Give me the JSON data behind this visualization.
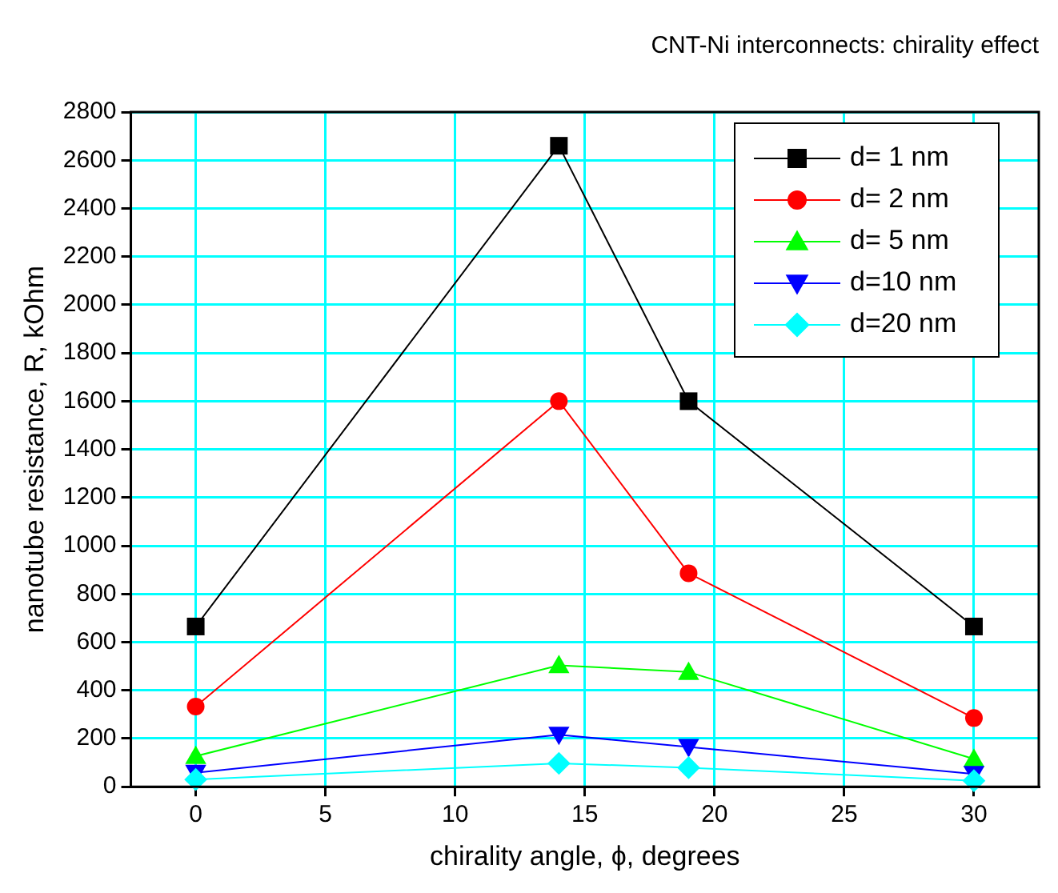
{
  "chart_data": {
    "type": "line",
    "title": "CNT-Ni interconnects: chirality effect",
    "xlabel": "chirality angle, ϕ, degrees",
    "ylabel": "nanotube resistance, R, kOhm",
    "x": [
      0,
      14,
      19,
      30
    ],
    "series": [
      {
        "name": "d= 1 nm",
        "color": "#000000",
        "marker": "square",
        "values": [
          665,
          2660,
          1600,
          665
        ]
      },
      {
        "name": "d= 2 nm",
        "color": "#ff0000",
        "marker": "circle",
        "values": [
          333,
          1600,
          886,
          285
        ]
      },
      {
        "name": "d= 5 nm",
        "color": "#00ff00",
        "marker": "triangle",
        "values": [
          127,
          504,
          476,
          115
        ]
      },
      {
        "name": "d=10 nm",
        "color": "#0000ff",
        "marker": "triangle-down",
        "values": [
          58,
          216,
          165,
          53
        ]
      },
      {
        "name": "d=20 nm",
        "color": "#00ffff",
        "marker": "diamond",
        "values": [
          30,
          97,
          79,
          25
        ]
      }
    ],
    "xlim": [
      -2.5,
      32.5
    ],
    "xticks": [
      0,
      5,
      10,
      15,
      20,
      25,
      30
    ],
    "ylim": [
      0,
      2800
    ],
    "yticks": [
      0,
      200,
      400,
      600,
      800,
      1000,
      1200,
      1400,
      1600,
      1800,
      2000,
      2200,
      2400,
      2600,
      2800
    ],
    "grid": true,
    "legend": "top right",
    "line_style": "solid"
  }
}
